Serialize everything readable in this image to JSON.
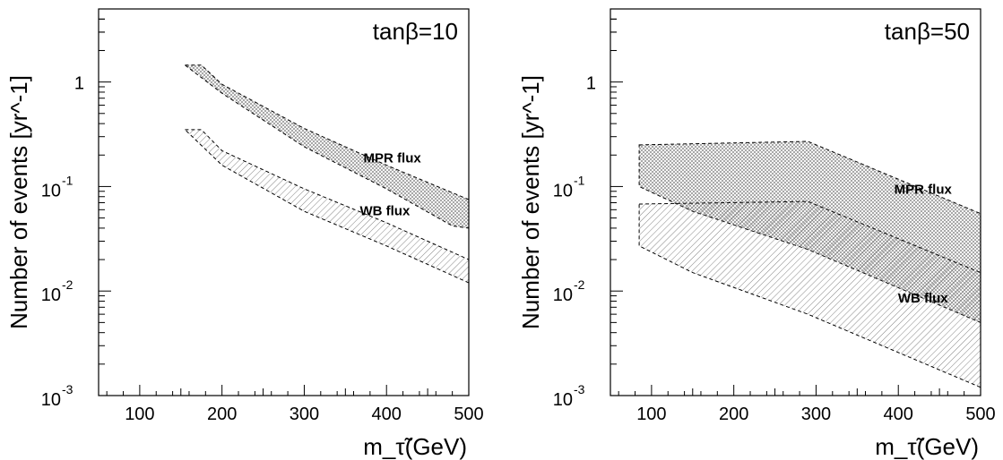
{
  "chart_data": [
    {
      "type": "area",
      "title": "tanβ=10",
      "xlabel": "m_τ̃(GeV)",
      "ylabel": "Number of events [yr^-1]",
      "xlim": [
        50,
        500
      ],
      "ylim": [
        0.001,
        5
      ],
      "yscale": "log",
      "x_ticks": [
        "100",
        "200",
        "300",
        "400",
        "500"
      ],
      "y_ticks": [
        {
          "base": "1",
          "exp": ""
        },
        {
          "base": "10",
          "exp": "-1"
        },
        {
          "base": "10",
          "exp": "-2"
        },
        {
          "base": "10",
          "exp": "-3"
        }
      ],
      "series": [
        {
          "name": "MPR flux",
          "pattern": "crosshatch",
          "upper": [
            [
              155,
              1.45
            ],
            [
              175,
              1.45
            ],
            [
              200,
              0.95
            ],
            [
              300,
              0.36
            ],
            [
              400,
              0.16
            ],
            [
              500,
              0.075
            ]
          ],
          "lower": [
            [
              155,
              1.45
            ],
            [
              200,
              0.78
            ],
            [
              300,
              0.24
            ],
            [
              400,
              0.095
            ],
            [
              480,
              0.042
            ],
            [
              500,
              0.04
            ]
          ]
        },
        {
          "name": "WB flux",
          "pattern": "diagonal",
          "upper": [
            [
              155,
              0.35
            ],
            [
              175,
              0.35
            ],
            [
              200,
              0.22
            ],
            [
              300,
              0.095
            ],
            [
              400,
              0.045
            ],
            [
              500,
              0.02
            ]
          ],
          "lower": [
            [
              155,
              0.35
            ],
            [
              200,
              0.16
            ],
            [
              300,
              0.058
            ],
            [
              400,
              0.027
            ],
            [
              500,
              0.012
            ]
          ]
        }
      ],
      "label_positions": [
        {
          "name": "MPR flux",
          "x": 407,
          "y": 0.17
        },
        {
          "name": "WB flux",
          "x": 398,
          "y": 0.053
        }
      ]
    },
    {
      "type": "area",
      "title": "tanβ=50",
      "xlabel": "m_τ̃(GeV)",
      "ylabel": "Number of events [yr^-1]",
      "xlim": [
        50,
        500
      ],
      "ylim": [
        0.001,
        5
      ],
      "yscale": "log",
      "x_ticks": [
        "100",
        "200",
        "300",
        "400",
        "500"
      ],
      "y_ticks": [
        {
          "base": "1",
          "exp": ""
        },
        {
          "base": "10",
          "exp": "-1"
        },
        {
          "base": "10",
          "exp": "-2"
        },
        {
          "base": "10",
          "exp": "-3"
        }
      ],
      "series": [
        {
          "name": "MPR flux",
          "pattern": "crosshatch",
          "upper": [
            [
              85,
              0.25
            ],
            [
              290,
              0.27
            ],
            [
              500,
              0.055
            ]
          ],
          "lower": [
            [
              85,
              0.1
            ],
            [
              150,
              0.058
            ],
            [
              290,
              0.025
            ],
            [
              500,
              0.005
            ]
          ]
        },
        {
          "name": "WB flux",
          "pattern": "diagonal",
          "upper": [
            [
              85,
              0.068
            ],
            [
              290,
              0.072
            ],
            [
              500,
              0.015
            ]
          ],
          "lower": [
            [
              85,
              0.027
            ],
            [
              150,
              0.015
            ],
            [
              290,
              0.006
            ],
            [
              500,
              0.0012
            ]
          ]
        }
      ],
      "label_positions": [
        {
          "name": "MPR flux",
          "x": 430,
          "y": 0.085
        },
        {
          "name": "WB flux",
          "x": 430,
          "y": 0.0078
        }
      ]
    }
  ]
}
